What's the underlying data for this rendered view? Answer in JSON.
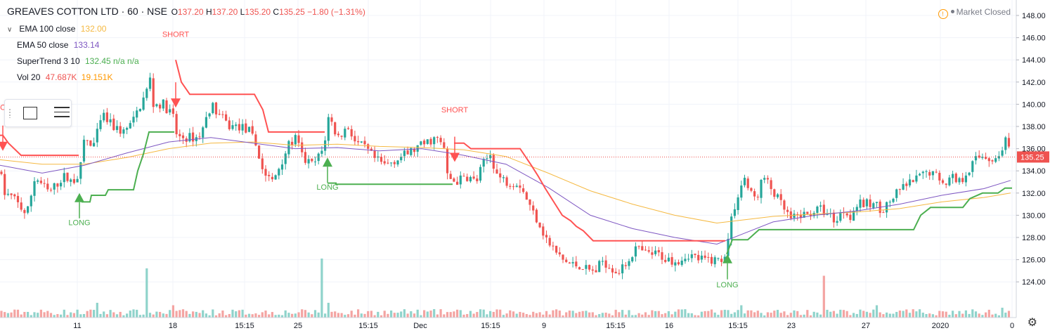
{
  "header": {
    "symbol": "GREAVES COTTON LTD · 60 · NSE",
    "open_label": "O",
    "open": "137.20",
    "high_label": "H",
    "high": "137.20",
    "low_label": "L",
    "low": "135.20",
    "close_label": "C",
    "close": "135.25",
    "change": "−1.80 (−1.31%)"
  },
  "legend": {
    "ema100": {
      "name": "EMA 100 close",
      "value": "132.00",
      "color": "#f5b942"
    },
    "ema50": {
      "name": "EMA 50 close",
      "value": "133.14",
      "color": "#7e57c2"
    },
    "supertrend": {
      "name": "SuperTrend 3 10",
      "value": "132.45 n/a n/a",
      "color": "#4caf50"
    },
    "vol": {
      "name": "Vol 20",
      "value1": "47.687K",
      "value2": "19.151K",
      "color": "#ef5350",
      "color2": "#ff9800"
    }
  },
  "market_status": "Market Closed",
  "icons": {
    "warning": "warning-icon",
    "settings": "gear-icon",
    "rectangle": "rectangle-tool-icon",
    "menu": "lines-menu-icon"
  },
  "chart_data": {
    "type": "candlestick",
    "y_ticks": [
      "148.00",
      "146.00",
      "144.00",
      "142.00",
      "140.00",
      "138.00",
      "136.00",
      "134.00",
      "132.00",
      "130.00",
      "128.00",
      "126.00",
      "124.00"
    ],
    "ylim": [
      122.8,
      149.0
    ],
    "last_price": "135.25",
    "x_ticks": [
      "11",
      "18",
      "15:15",
      "25",
      "15:15",
      "Dec",
      "15:15",
      "9",
      "15:15",
      "16",
      "15:15",
      "23",
      "27",
      "2020",
      "0"
    ],
    "colors": {
      "up": "#26a69a",
      "down": "#ef5350",
      "vol_up": "#8fd3cb",
      "vol_down": "#f4a4a2",
      "supertrend_up": "#4caf50",
      "supertrend_down": "#ff5252",
      "ema50": "#7e57c2",
      "ema100": "#f5b942",
      "last_line": "#ef5350"
    },
    "price_path": [
      [
        0,
        134.0
      ],
      [
        6,
        132.0
      ],
      [
        20,
        131.5
      ],
      [
        38,
        130.0
      ],
      [
        50,
        133.5
      ],
      [
        70,
        132.0
      ],
      [
        90,
        133.5
      ],
      [
        104,
        133.0
      ],
      [
        114,
        134.0
      ],
      [
        120,
        137.0
      ],
      [
        132,
        136.0
      ],
      [
        146,
        139.0
      ],
      [
        160,
        138.0
      ],
      [
        176,
        137.5
      ],
      [
        190,
        138.5
      ],
      [
        200,
        140.0
      ],
      [
        208,
        141.0
      ],
      [
        213,
        142.5
      ],
      [
        218,
        140.0
      ],
      [
        232,
        140.0
      ],
      [
        246,
        139.0
      ],
      [
        252,
        137.0
      ],
      [
        270,
        137.0
      ],
      [
        282,
        137.0
      ],
      [
        290,
        138.0
      ],
      [
        300,
        140.0
      ],
      [
        312,
        139.0
      ],
      [
        326,
        138.0
      ],
      [
        342,
        138.0
      ],
      [
        356,
        137.5
      ],
      [
        366,
        136.0
      ],
      [
        374,
        134.0
      ],
      [
        380,
        133.5
      ],
      [
        388,
        133.0
      ],
      [
        398,
        134.5
      ],
      [
        408,
        136.0
      ],
      [
        420,
        137.0
      ],
      [
        432,
        135.0
      ],
      [
        446,
        134.5
      ],
      [
        460,
        136.0
      ],
      [
        468,
        139.0
      ],
      [
        480,
        137.0
      ],
      [
        496,
        138.0
      ],
      [
        506,
        136.5
      ],
      [
        520,
        136.0
      ],
      [
        534,
        135.0
      ],
      [
        548,
        134.5
      ],
      [
        562,
        135.0
      ],
      [
        578,
        135.5
      ],
      [
        592,
        136.0
      ],
      [
        606,
        136.5
      ],
      [
        620,
        137.0
      ],
      [
        632,
        136.0
      ],
      [
        636,
        133.5
      ],
      [
        648,
        133.0
      ],
      [
        664,
        133.5
      ],
      [
        678,
        133.0
      ],
      [
        686,
        134.5
      ],
      [
        698,
        135.5
      ],
      [
        708,
        133.5
      ],
      [
        722,
        133.0
      ],
      [
        738,
        133.0
      ],
      [
        746,
        132.0
      ],
      [
        756,
        130.5
      ],
      [
        766,
        129.5
      ],
      [
        776,
        128.0
      ],
      [
        786,
        127.0
      ],
      [
        800,
        126.0
      ],
      [
        814,
        125.5
      ],
      [
        826,
        125.5
      ],
      [
        838,
        125.0
      ],
      [
        850,
        125.0
      ],
      [
        856,
        126.0
      ],
      [
        866,
        125.5
      ],
      [
        876,
        125.0
      ],
      [
        884,
        125.0
      ],
      [
        894,
        126.0
      ],
      [
        904,
        127.0
      ],
      [
        920,
        126.5
      ],
      [
        936,
        126.5
      ],
      [
        950,
        126.0
      ],
      [
        966,
        126.0
      ],
      [
        980,
        126.5
      ],
      [
        996,
        126.0
      ],
      [
        1012,
        126.0
      ],
      [
        1026,
        126.0
      ],
      [
        1034,
        127.0
      ],
      [
        1040,
        129.5
      ],
      [
        1048,
        131.5
      ],
      [
        1054,
        132.5
      ],
      [
        1060,
        133.5
      ],
      [
        1066,
        132.0
      ],
      [
        1076,
        131.5
      ],
      [
        1086,
        133.5
      ],
      [
        1096,
        132.5
      ],
      [
        1106,
        131.5
      ],
      [
        1116,
        130.5
      ],
      [
        1126,
        129.5
      ],
      [
        1136,
        130.0
      ],
      [
        1148,
        130.0
      ],
      [
        1160,
        130.5
      ],
      [
        1170,
        130.5
      ],
      [
        1180,
        130.0
      ],
      [
        1190,
        129.5
      ],
      [
        1200,
        130.5
      ],
      [
        1210,
        130.0
      ],
      [
        1220,
        131.0
      ],
      [
        1232,
        131.0
      ],
      [
        1244,
        131.0
      ],
      [
        1256,
        130.5
      ],
      [
        1270,
        131.5
      ],
      [
        1284,
        132.5
      ],
      [
        1298,
        133.0
      ],
      [
        1310,
        133.5
      ],
      [
        1322,
        134.0
      ],
      [
        1334,
        133.5
      ],
      [
        1344,
        133.0
      ],
      [
        1356,
        133.5
      ],
      [
        1366,
        133.0
      ],
      [
        1376,
        134.0
      ],
      [
        1388,
        135.0
      ],
      [
        1400,
        135.5
      ],
      [
        1410,
        135.0
      ],
      [
        1420,
        135.0
      ],
      [
        1430,
        137.0
      ],
      [
        1438,
        135.3
      ]
    ],
    "ema50_path": [
      [
        0,
        134.5
      ],
      [
        60,
        133.8
      ],
      [
        120,
        134.5
      ],
      [
        180,
        135.6
      ],
      [
        240,
        136.6
      ],
      [
        300,
        137.0
      ],
      [
        360,
        136.5
      ],
      [
        420,
        136.0
      ],
      [
        480,
        136.1
      ],
      [
        540,
        135.8
      ],
      [
        600,
        136.0
      ],
      [
        660,
        135.4
      ],
      [
        720,
        134.6
      ],
      [
        780,
        132.5
      ],
      [
        840,
        130.0
      ],
      [
        900,
        128.8
      ],
      [
        960,
        128.0
      ],
      [
        1020,
        127.4
      ],
      [
        1060,
        128.4
      ],
      [
        1100,
        129.4
      ],
      [
        1160,
        130.0
      ],
      [
        1220,
        130.4
      ],
      [
        1280,
        131.0
      ],
      [
        1340,
        131.8
      ],
      [
        1400,
        132.4
      ],
      [
        1438,
        133.14
      ]
    ],
    "ema100_path": [
      [
        0,
        135.0
      ],
      [
        60,
        134.6
      ],
      [
        120,
        134.6
      ],
      [
        180,
        135.2
      ],
      [
        240,
        136.0
      ],
      [
        300,
        136.5
      ],
      [
        360,
        136.6
      ],
      [
        420,
        136.3
      ],
      [
        480,
        136.4
      ],
      [
        540,
        136.2
      ],
      [
        600,
        136.1
      ],
      [
        660,
        135.9
      ],
      [
        720,
        135.3
      ],
      [
        780,
        133.8
      ],
      [
        840,
        132.2
      ],
      [
        900,
        131.0
      ],
      [
        960,
        130.0
      ],
      [
        1020,
        129.3
      ],
      [
        1060,
        129.6
      ],
      [
        1100,
        129.9
      ],
      [
        1160,
        130.1
      ],
      [
        1220,
        130.3
      ],
      [
        1280,
        130.6
      ],
      [
        1340,
        131.2
      ],
      [
        1400,
        131.6
      ],
      [
        1438,
        132.0
      ]
    ],
    "supertrend_segments": [
      {
        "dir": "down",
        "points": [
          [
            0,
            137.2
          ],
          [
            4,
            137.2
          ],
          [
            12,
            136.5
          ],
          [
            30,
            135.4
          ],
          [
            112,
            135.4
          ]
        ]
      },
      {
        "dir": "up",
        "points": [
          [
            116,
            131.2
          ],
          [
            128,
            131.2
          ],
          [
            130,
            131.8
          ],
          [
            150,
            131.8
          ],
          [
            154,
            132.3
          ],
          [
            190,
            132.3
          ],
          [
            196,
            134.0
          ],
          [
            204,
            135.5
          ],
          [
            212,
            137.5
          ],
          [
            248,
            137.5
          ]
        ]
      },
      {
        "dir": "down",
        "points": [
          [
            250,
            144.0
          ],
          [
            258,
            142.0
          ],
          [
            270,
            140.9
          ],
          [
            362,
            140.9
          ],
          [
            374,
            139.5
          ],
          [
            382,
            137.5
          ],
          [
            462,
            137.5
          ]
        ]
      },
      {
        "dir": "up",
        "points": [
          [
            466,
            132.9
          ],
          [
            478,
            132.9
          ],
          [
            478,
            132.8
          ],
          [
            644,
            132.8
          ]
        ]
      },
      {
        "dir": "down",
        "points": [
          [
            646,
            136.5
          ],
          [
            660,
            136.5
          ],
          [
            670,
            136.0
          ],
          [
            740,
            136.0
          ],
          [
            756,
            134.5
          ],
          [
            766,
            133.5
          ],
          [
            776,
            132.4
          ],
          [
            790,
            131.0
          ],
          [
            800,
            130.0
          ],
          [
            812,
            129.5
          ],
          [
            820,
            129.0
          ],
          [
            830,
            128.6
          ],
          [
            844,
            127.7
          ],
          [
            1032,
            127.7
          ]
        ]
      },
      {
        "dir": "up",
        "points": [
          [
            1034,
            126.5
          ],
          [
            1042,
            127.8
          ],
          [
            1064,
            127.8
          ],
          [
            1080,
            128.7
          ],
          [
            1300,
            128.7
          ],
          [
            1310,
            130.0
          ],
          [
            1324,
            130.7
          ],
          [
            1370,
            130.7
          ],
          [
            1380,
            131.5
          ],
          [
            1398,
            132.0
          ],
          [
            1420,
            132.0
          ],
          [
            1430,
            132.45
          ],
          [
            1440,
            132.45
          ]
        ]
      }
    ],
    "signals": [
      {
        "type": "short",
        "label": "SHORT",
        "x": 4,
        "price": 135.8,
        "label_price": 137.2
      },
      {
        "type": "long",
        "label": "LONG",
        "x": 113,
        "price": 132.0,
        "label_price": 129.6
      },
      {
        "type": "short",
        "label": "SHORT",
        "x": 250,
        "price": 139.7,
        "label_price": 143.8
      },
      {
        "type": "long",
        "label": "LONG",
        "x": 466,
        "price": 135.2,
        "label_price": 132.8
      },
      {
        "type": "short",
        "label": "SHORT",
        "x": 647,
        "price": 134.8,
        "label_price": 137.0
      },
      {
        "type": "long",
        "label": "LONG",
        "x": 1035,
        "price": 126.5,
        "label_price": 124.0
      }
    ],
    "volume_spikes": [
      [
        138,
        0.3
      ],
      [
        211,
        1.0
      ],
      [
        245,
        0.25
      ],
      [
        458,
        1.2
      ],
      [
        466,
        0.3
      ],
      [
        1055,
        0.25
      ],
      [
        1172,
        0.85
      ],
      [
        1246,
        0.25
      ],
      [
        1428,
        0.2
      ]
    ]
  }
}
